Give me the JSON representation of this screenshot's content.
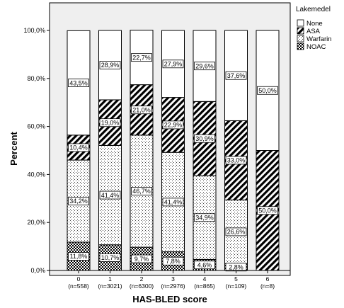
{
  "chart_data": {
    "type": "bar",
    "stacked": true,
    "xlabel": "HAS-BLED score",
    "ylabel": "Percent",
    "ylim": [
      0,
      100
    ],
    "yticks": [
      "0,0%",
      "20,0%",
      "40,0%",
      "60,0%",
      "80,0%",
      "100,0%"
    ],
    "categories": [
      "0",
      "1",
      "2",
      "3",
      "4",
      "5",
      "6"
    ],
    "category_counts": [
      "(n=558)",
      "(n=3021)",
      "(n=6300)",
      "(n=2976)",
      "(n=865)",
      "(n=109)",
      "(n=8)"
    ],
    "legend_title": "Lakemedel",
    "legend_position": "top-right",
    "series": [
      {
        "name": "NOAC",
        "pattern": "checker",
        "values": [
          11.8,
          10.7,
          9.7,
          7.8,
          4.6,
          2.8,
          0
        ]
      },
      {
        "name": "Warfarin",
        "pattern": "dots",
        "values": [
          34.2,
          41.4,
          46.7,
          41.4,
          34.9,
          26.6,
          0
        ]
      },
      {
        "name": "ASA",
        "pattern": "diagonal",
        "values": [
          10.4,
          19.0,
          21.0,
          22.9,
          30.9,
          33.0,
          50.0
        ]
      },
      {
        "name": "None",
        "pattern": "none",
        "values": [
          43.5,
          28.9,
          22.7,
          27.9,
          29.6,
          37.6,
          50.0
        ]
      }
    ],
    "data_labels": [
      [
        "11,8%",
        "34,2%",
        "10,4%",
        "43,5%"
      ],
      [
        "10,7%",
        "41,4%",
        "19,0%",
        "28,9%"
      ],
      [
        "9,7%",
        "46,7%",
        "21,0%",
        "22,7%"
      ],
      [
        "7,8%",
        "41,4%",
        "22,9%",
        "27,9%"
      ],
      [
        "4,6%",
        "34,9%",
        "30,9%",
        "29,6%"
      ],
      [
        "2,8%",
        "26,6%",
        "33,0%",
        "37,6%"
      ],
      [
        "",
        "",
        "50,0%",
        "50,0%"
      ]
    ],
    "legend_order": [
      "None",
      "ASA",
      "Warfarin",
      "NOAC"
    ]
  }
}
